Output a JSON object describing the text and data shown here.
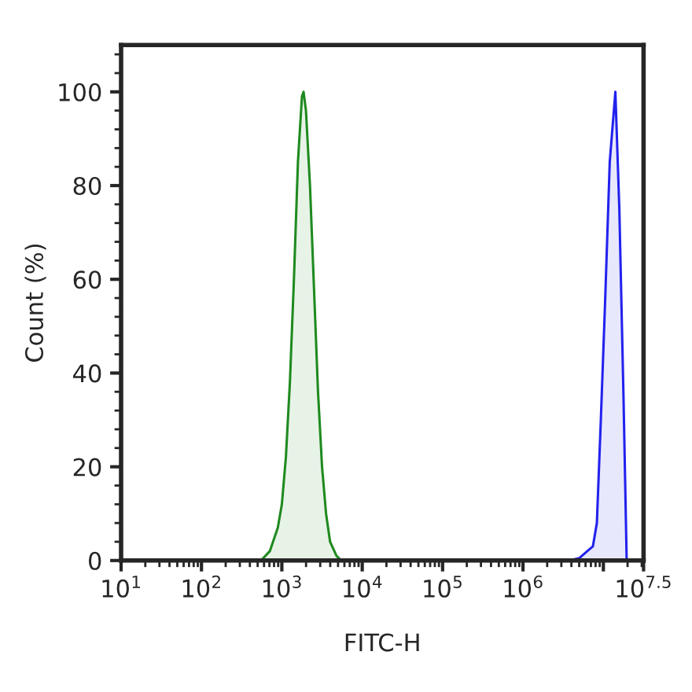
{
  "chart_data": {
    "type": "area",
    "xlabel": "FITC-H",
    "ylabel": "Count (%)",
    "log": "x",
    "grid": false,
    "legend": false,
    "xlim": [
      10,
      31622777
    ],
    "ylim": [
      0,
      110
    ],
    "xticks": [
      {
        "value": 10,
        "label": "10$^{1}$"
      },
      {
        "value": 100,
        "label": "10$^{2}$"
      },
      {
        "value": 1000,
        "label": "10$^{3}$"
      },
      {
        "value": 10000,
        "label": "10$^{4}$"
      },
      {
        "value": 100000,
        "label": "10$^{5}$"
      },
      {
        "value": 1000000,
        "label": "10$^{6}$"
      },
      {
        "value": 10000000,
        "label": null
      },
      {
        "value": 31622777,
        "label": "10$^{7.5}$"
      }
    ],
    "yticks": [
      0,
      20,
      40,
      60,
      80,
      100
    ],
    "series": [
      {
        "color": "#1f8a1f",
        "x": [
          550,
          708,
          891,
          1000,
          1122,
          1259,
          1413,
          1585,
          1778,
          1862,
          1995,
          2239,
          2512,
          2818,
          3162,
          3548,
          3981,
          4786,
          5495
        ],
        "values": [
          0,
          2,
          7,
          12,
          22,
          38,
          60,
          85,
          99,
          100,
          96,
          80,
          58,
          36,
          20,
          10,
          4,
          1,
          0
        ]
      },
      {
        "color": "#2222ee",
        "x": [
          3800000,
          5000000,
          6300000,
          7400000,
          8300000,
          9300000,
          10500000,
          12000000,
          14100000,
          15800000,
          17800000,
          19500000
        ],
        "values": [
          0,
          0.5,
          2,
          3,
          8,
          30,
          55,
          85,
          100,
          75,
          35,
          0
        ]
      }
    ]
  }
}
